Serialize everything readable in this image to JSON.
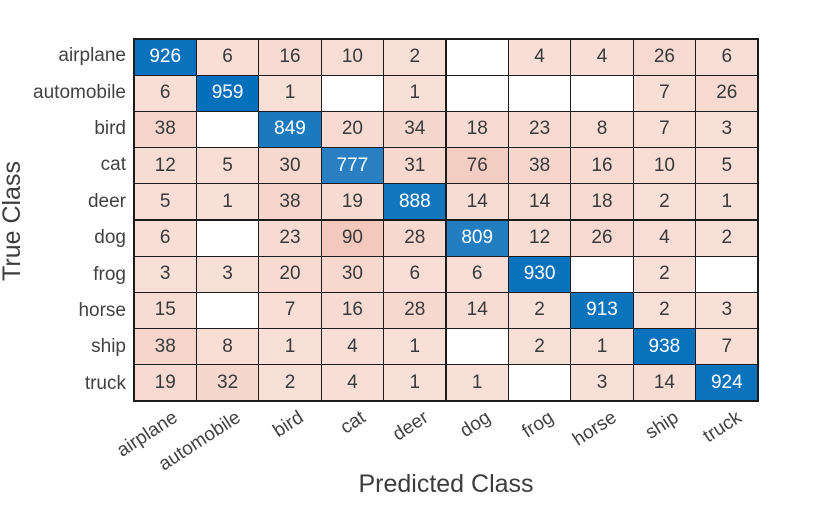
{
  "chart_data": {
    "type": "heatmap",
    "subtype": "confusion-matrix",
    "xlabel": "Predicted Class",
    "ylabel": "True Class",
    "classes": [
      "airplane",
      "automobile",
      "bird",
      "cat",
      "deer",
      "dog",
      "frog",
      "horse",
      "ship",
      "truck"
    ],
    "matrix": [
      [
        926,
        6,
        16,
        10,
        2,
        null,
        4,
        4,
        26,
        6
      ],
      [
        6,
        959,
        1,
        null,
        1,
        null,
        null,
        null,
        7,
        26
      ],
      [
        38,
        null,
        849,
        20,
        34,
        18,
        23,
        8,
        7,
        3
      ],
      [
        12,
        5,
        30,
        777,
        31,
        76,
        38,
        16,
        10,
        5
      ],
      [
        5,
        1,
        38,
        19,
        888,
        14,
        14,
        18,
        2,
        1
      ],
      [
        6,
        null,
        23,
        90,
        28,
        809,
        12,
        26,
        4,
        2
      ],
      [
        3,
        3,
        20,
        30,
        6,
        6,
        930,
        null,
        2,
        null
      ],
      [
        15,
        null,
        7,
        16,
        28,
        14,
        2,
        913,
        2,
        3
      ],
      [
        38,
        8,
        1,
        4,
        1,
        null,
        2,
        1,
        938,
        7
      ],
      [
        19,
        32,
        2,
        4,
        1,
        1,
        null,
        3,
        14,
        924
      ]
    ],
    "layout": {
      "x_tick_rotation_deg": -33,
      "grid": "on",
      "legend": "none"
    },
    "colors": {
      "diagonal_max": "#0470bb",
      "diagonal_min": "#2980c2",
      "off_diagonal_max": "#f2c9bc",
      "off_diagonal_min": "#f8dfd7",
      "empty_cell": "#ffffff",
      "diagonal_text": "#ffffff",
      "cell_text": "#3a3a3a",
      "grid_line": "#1c1c1c",
      "tick_label_text": "#424242",
      "axis_title_text": "#3d3d3d"
    }
  }
}
